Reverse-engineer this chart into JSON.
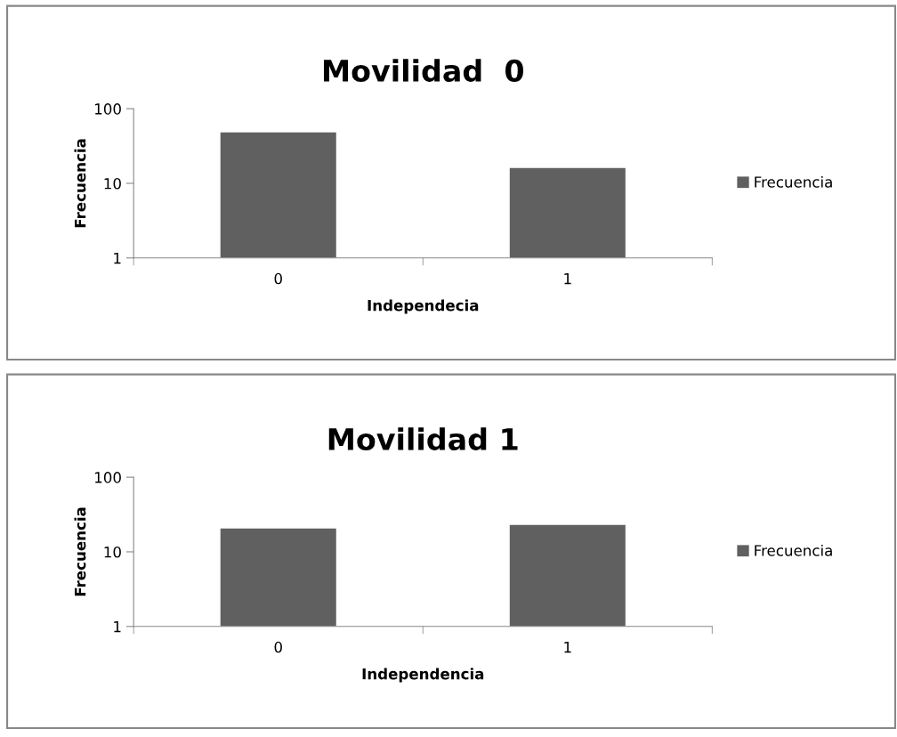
{
  "chart_data": [
    {
      "type": "bar",
      "title": "Movilidad  0",
      "xlabel": "Independecia",
      "ylabel": "Frecuencia",
      "categories": [
        "0",
        "1"
      ],
      "series": [
        {
          "name": "Frecuencia",
          "color": "#606060",
          "values": [
            48,
            16
          ]
        }
      ],
      "log": true,
      "ylim": [
        1,
        100
      ],
      "yticks": [
        1,
        10,
        100
      ],
      "grid": false,
      "legend": "right"
    },
    {
      "type": "bar",
      "title": "Movilidad 1",
      "xlabel": "Independencia",
      "ylabel": "Frecuencia",
      "categories": [
        "0",
        "1"
      ],
      "series": [
        {
          "name": "Frecuencia",
          "color": "#606060",
          "values": [
            20.5,
            23
          ]
        }
      ],
      "log": true,
      "ylim": [
        1,
        100
      ],
      "yticks": [
        1,
        10,
        100
      ],
      "grid": false,
      "legend": "right"
    }
  ]
}
